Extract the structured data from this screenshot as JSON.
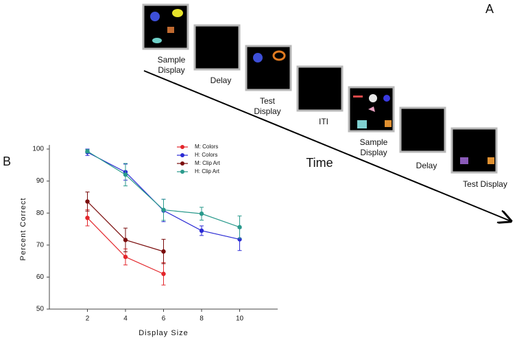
{
  "panel_a": {
    "panel_label": "A",
    "arrow_label": "Time",
    "frames": [
      {
        "label": "Sample Display"
      },
      {
        "label": "Delay"
      },
      {
        "label": "Test Display"
      },
      {
        "label": "ITI"
      },
      {
        "label": "Sample Display"
      },
      {
        "label": "Delay"
      },
      {
        "label": "Test Display"
      }
    ]
  },
  "panel_b": {
    "panel_label": "B"
  },
  "chart_data": {
    "type": "line",
    "x_label": "Display Size",
    "y_label": "Percent Correct",
    "x": [
      2,
      4,
      6,
      8,
      10
    ],
    "xlim": [
      0,
      12
    ],
    "xticks": [
      2,
      4,
      6,
      8,
      10
    ],
    "ylim": [
      50,
      100
    ],
    "yticks": [
      50,
      60,
      70,
      80,
      90,
      100
    ],
    "grid": false,
    "legend": "top",
    "series": [
      {
        "name": "M: Colors",
        "color": "#e3262b",
        "values": [
          78.5,
          66.3,
          61,
          null,
          null
        ],
        "errors": [
          2.5,
          2.5,
          3.5,
          null,
          null
        ]
      },
      {
        "name": "H: Colors",
        "color": "#2a2ad4",
        "values": [
          99,
          92.8,
          80.8,
          74.5,
          71.8
        ],
        "errors": [
          1,
          2.5,
          3.5,
          1.5,
          3.5
        ]
      },
      {
        "name": "M: Clip Art",
        "color": "#7a0c0c",
        "values": [
          83.6,
          71.6,
          68,
          null,
          null
        ],
        "errors": [
          3,
          3.7,
          3.8,
          null,
          null
        ]
      },
      {
        "name": "H: Clip Art",
        "color": "#2a9a8c",
        "values": [
          99.3,
          92,
          81,
          79.8,
          75.6
        ],
        "errors": [
          0.5,
          3.5,
          3.3,
          2,
          3.5
        ]
      }
    ]
  }
}
